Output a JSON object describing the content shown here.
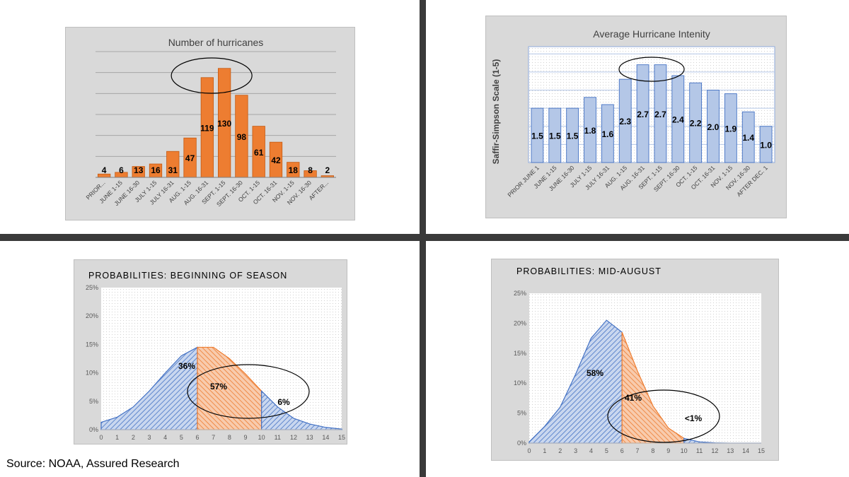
{
  "colors": {
    "orange": "#ed7d31",
    "orange_dark": "#c55a11",
    "blue": "#b4c7e7",
    "blue_dark": "#4472c4",
    "panel_bg": "#d9d9d9",
    "divider": "#3a3a3a"
  },
  "source": "Source: NOAA, Assured Research",
  "chart_data": [
    {
      "id": "hurricane_count",
      "type": "bar",
      "title": "Number of hurricanes",
      "xlabel": "",
      "ylabel": "",
      "ylim": [
        0,
        150
      ],
      "grid": true,
      "categories": [
        "PRIOR...",
        "JUNE 1-15",
        "JUNE 16-30",
        "JULY 1-15",
        "JULY 16-31",
        "AUG. 1-15",
        "AUG. 16-31",
        "SEPT. 1-15",
        "SEPT. 16-30",
        "OCT. 1-15",
        "OCT. 16-31",
        "NOV. 1-15",
        "NOV. 16-30",
        "AFTER..."
      ],
      "values": [
        4,
        6,
        13,
        16,
        31,
        47,
        119,
        130,
        98,
        61,
        42,
        18,
        8,
        2
      ],
      "data_labels": [
        "4",
        "6",
        "13",
        "16",
        "31",
        "47",
        "119",
        "130",
        "98",
        "61",
        "42",
        "18",
        "8",
        "2"
      ],
      "annotation": "ellipse around AUG. 16-31 to SEPT. 16-30"
    },
    {
      "id": "hurricane_intensity",
      "type": "bar",
      "title": "Average Hurricane Intenity",
      "xlabel": "",
      "ylabel": "Saffir-Simpson Scale (1-5)",
      "ylim": [
        0,
        3.2
      ],
      "grid": true,
      "categories": [
        "PRIOR JUNE 1",
        "JUNE 1-15",
        "JUNE 16-30",
        "JULY 1-15",
        "JULY 16-31",
        "AUG. 1-15",
        "AUG. 16-31",
        "SEPT. 1-15",
        "SEPT. 16-30",
        "OCT. 1-15",
        "OCT. 16-31",
        "NOV. 1-15",
        "NOV. 16-30",
        "AFTER DEC. 1"
      ],
      "values": [
        1.5,
        1.5,
        1.5,
        1.8,
        1.6,
        2.3,
        2.7,
        2.7,
        2.4,
        2.2,
        2.0,
        1.9,
        1.4,
        1.0
      ],
      "data_labels": [
        "1.5",
        "1.5",
        "1.5",
        "1.8",
        "1.6",
        "2.3",
        "2.7",
        "2.7",
        "2.4",
        "2.2",
        "2.0",
        "1.9",
        "1.4",
        "1.0"
      ],
      "annotation": "ellipse around AUG. 16-31 to SEPT. 16-30"
    },
    {
      "id": "prob_beginning",
      "type": "area",
      "title": "PROBABILITIES: BEGINNING OF SEASON",
      "xlabel": "",
      "ylabel": "",
      "xlim": [
        0,
        15
      ],
      "ylim": [
        0,
        0.25
      ],
      "x_ticks": [
        "0",
        "1",
        "2",
        "3",
        "4",
        "5",
        "6",
        "7",
        "8",
        "9",
        "10",
        "11",
        "12",
        "13",
        "14",
        "15"
      ],
      "y_ticks": [
        "0%",
        "5%",
        "10%",
        "15%",
        "20%",
        "25%"
      ],
      "x": [
        0,
        1,
        2,
        3,
        4,
        5,
        6,
        7,
        8,
        9,
        10,
        11,
        12,
        13,
        14,
        15
      ],
      "y": [
        0.013,
        0.022,
        0.04,
        0.068,
        0.1,
        0.13,
        0.145,
        0.145,
        0.125,
        0.098,
        0.068,
        0.04,
        0.02,
        0.01,
        0.004,
        0.001
      ],
      "segments": [
        {
          "from": 0,
          "to": 6,
          "color": "blue",
          "label": "36%"
        },
        {
          "from": 6,
          "to": 10,
          "color": "orange",
          "label": "57%"
        },
        {
          "from": 10,
          "to": 15,
          "color": "blue",
          "label": "6%"
        }
      ],
      "annotation": "ellipse around x 6 to 13"
    },
    {
      "id": "prob_mid_august",
      "type": "area",
      "title": "PROBABILITIES: MID-AUGUST",
      "xlabel": "",
      "ylabel": "",
      "xlim": [
        0,
        15
      ],
      "ylim": [
        0,
        0.25
      ],
      "x_ticks": [
        "0",
        "1",
        "2",
        "3",
        "4",
        "5",
        "6",
        "7",
        "8",
        "9",
        "10",
        "11",
        "12",
        "13",
        "14",
        "15"
      ],
      "y_ticks": [
        "0%",
        "5%",
        "10%",
        "15%",
        "20%",
        "25%"
      ],
      "x": [
        0,
        1,
        2,
        3,
        4,
        5,
        6,
        7,
        8,
        9,
        10,
        11,
        12,
        13,
        14,
        15
      ],
      "y": [
        0.002,
        0.028,
        0.06,
        0.115,
        0.175,
        0.205,
        0.185,
        0.12,
        0.062,
        0.025,
        0.008,
        0.002,
        0.0005,
        0,
        0,
        0
      ],
      "segments": [
        {
          "from": 0,
          "to": 6,
          "color": "blue",
          "label": "58%"
        },
        {
          "from": 6,
          "to": 10,
          "color": "orange",
          "label": "41%"
        },
        {
          "from": 10,
          "to": 15,
          "color": "blue",
          "label": "<1%"
        }
      ],
      "annotation": "ellipse around x 5 to 12"
    }
  ]
}
